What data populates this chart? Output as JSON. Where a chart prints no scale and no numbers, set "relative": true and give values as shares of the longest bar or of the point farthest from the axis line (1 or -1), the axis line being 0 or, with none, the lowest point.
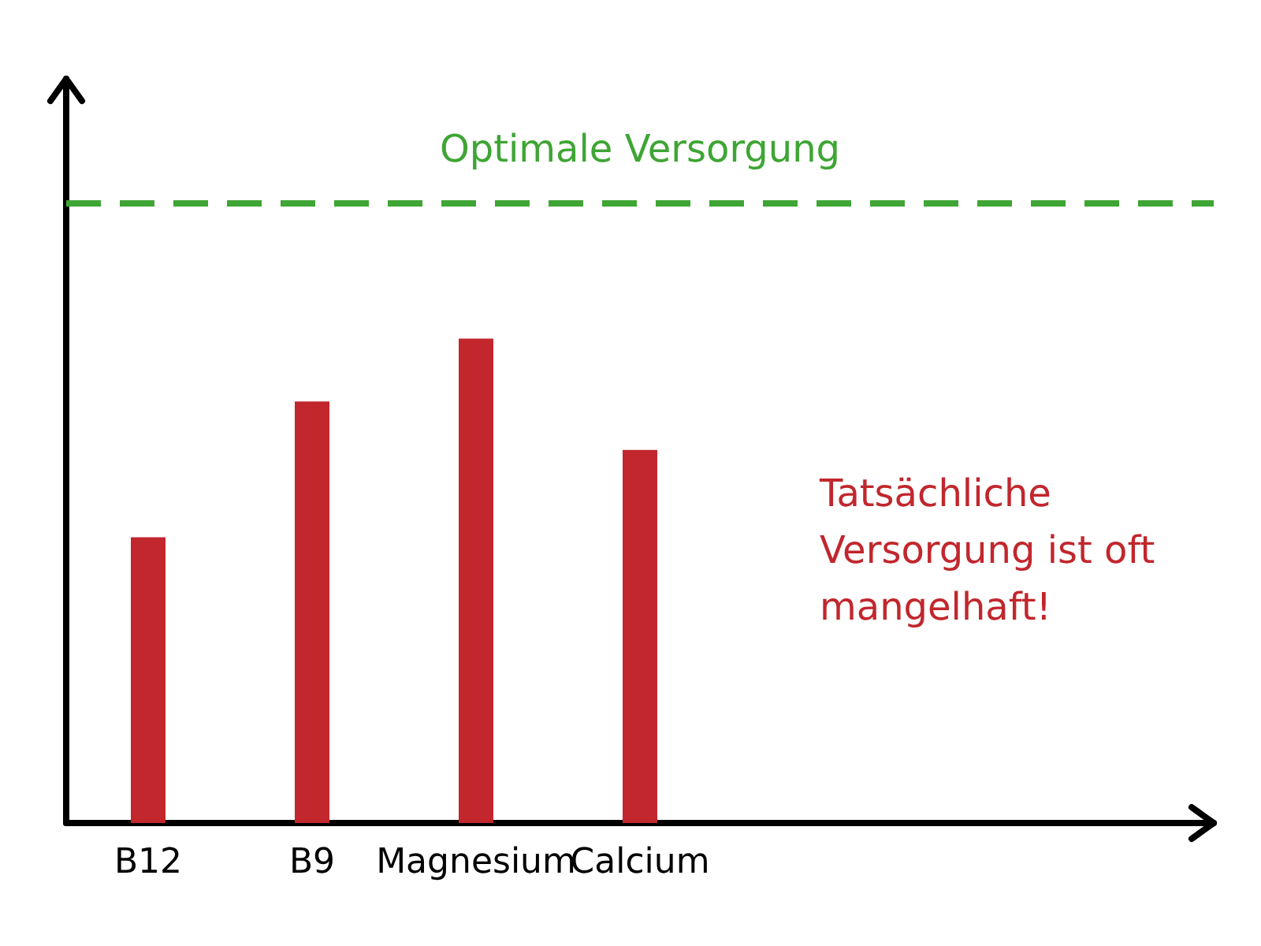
{
  "chart_data": {
    "type": "bar",
    "relative": true,
    "categories": [
      "B12",
      "B9",
      "Magnesium",
      "Calcium"
    ],
    "values": [
      0.59,
      0.87,
      1,
      0.77
    ],
    "color": "#c1272d",
    "ref_lines": [
      {
        "axis": "y",
        "value": 1.28,
        "label": "Optimale Versorgung",
        "color": "#3fa535",
        "line_style": "dashed"
      }
    ],
    "annotations": [
      "Tatsächliche Versorgung ist oft mangelhaft!"
    ],
    "grid": false
  }
}
